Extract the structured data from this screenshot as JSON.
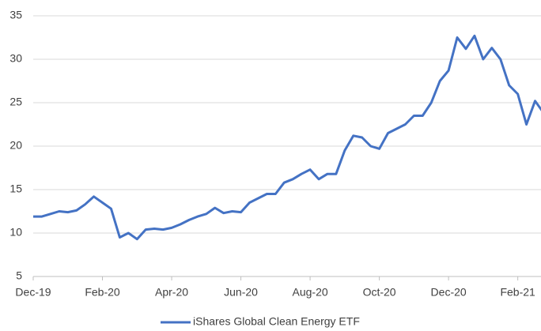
{
  "chart_data": {
    "type": "line",
    "categories": [
      "Dec-19",
      null,
      null,
      null,
      null,
      null,
      null,
      null,
      "Feb-20",
      null,
      null,
      null,
      null,
      null,
      null,
      null,
      "Apr-20",
      null,
      null,
      null,
      null,
      null,
      null,
      null,
      "Jun-20",
      null,
      null,
      null,
      null,
      null,
      null,
      null,
      "Aug-20",
      null,
      null,
      null,
      null,
      null,
      null,
      null,
      "Oct-20",
      null,
      null,
      null,
      null,
      null,
      null,
      null,
      "Dec-20",
      null,
      null,
      null,
      null,
      null,
      null,
      null,
      "Feb-21",
      null,
      null,
      null
    ],
    "series": [
      {
        "name": "iShares Global Clean Energy ETF",
        "color": "#4472c4",
        "values": [
          11.9,
          11.9,
          12.2,
          12.5,
          12.4,
          12.6,
          13.3,
          14.2,
          13.5,
          12.8,
          9.5,
          10.0,
          9.3,
          10.4,
          10.5,
          10.4,
          10.6,
          11.0,
          11.5,
          11.9,
          12.2,
          12.9,
          12.3,
          12.5,
          12.4,
          13.5,
          14.0,
          14.5,
          14.5,
          15.8,
          16.2,
          16.8,
          17.3,
          16.2,
          16.8,
          16.8,
          19.5,
          21.2,
          21.0,
          20.0,
          19.7,
          21.5,
          22.0,
          22.5,
          23.5,
          23.5,
          25.0,
          27.5,
          28.7,
          32.5,
          31.2,
          32.7,
          30.0,
          31.3,
          30.0,
          27.0,
          26.0,
          22.5,
          25.2,
          23.8
        ]
      }
    ],
    "ylim": [
      5,
      35
    ],
    "yticks": [
      5,
      10,
      15,
      20,
      25,
      30,
      35
    ],
    "grid": true,
    "legend": "bottom"
  }
}
